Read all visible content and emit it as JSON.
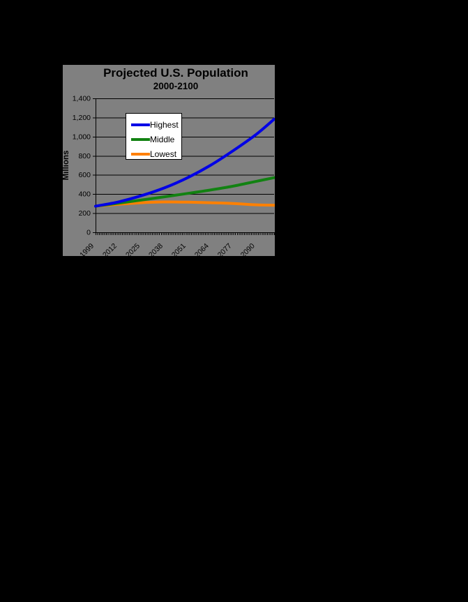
{
  "page": {
    "background_color": "#000000"
  },
  "chart_data": {
    "type": "line",
    "title": "Projected U.S. Population",
    "subtitle": "2000-2100",
    "ylabel": "Millions",
    "xlabel": "",
    "x": [
      1999,
      2012,
      2025,
      2038,
      2051,
      2064,
      2077,
      2090,
      2100
    ],
    "xlim": [
      1999,
      2100
    ],
    "ylim": [
      0,
      1400
    ],
    "xtick_years": [
      1999,
      2012,
      2025,
      2038,
      2051,
      2064,
      2077,
      2090
    ],
    "xtick_labels": [
      "1999",
      "2012",
      "2025",
      "2038",
      "2051",
      "2064",
      "2077",
      "2090"
    ],
    "ytick_values": [
      0,
      200,
      400,
      600,
      800,
      1000,
      1200,
      1400
    ],
    "ytick_labels": [
      "0",
      "200",
      "400",
      "600",
      "800",
      "1,000",
      "1,200",
      "1,400"
    ],
    "grid": "horizontal-only",
    "gridline_color": "#000000",
    "plot_background": "#808080",
    "axis_color": "#000000",
    "minor_xtick_every_years": 1,
    "legend_position": "upper-left-inside",
    "legend_background": "#FFFFFF",
    "legend_border_color": "#000000",
    "series": [
      {
        "name": "Highest",
        "color": "#0000E6",
        "values": [
          273,
          318,
          383,
          465,
          570,
          700,
          855,
          1025,
          1182
        ]
      },
      {
        "name": "Middle",
        "color": "#128212",
        "values": [
          273,
          304,
          337,
          371,
          406,
          442,
          483,
          533,
          571
        ]
      },
      {
        "name": "Lowest",
        "color": "#FF8000",
        "values": [
          273,
          293,
          309,
          317,
          315,
          309,
          301,
          287,
          283
        ]
      }
    ]
  }
}
